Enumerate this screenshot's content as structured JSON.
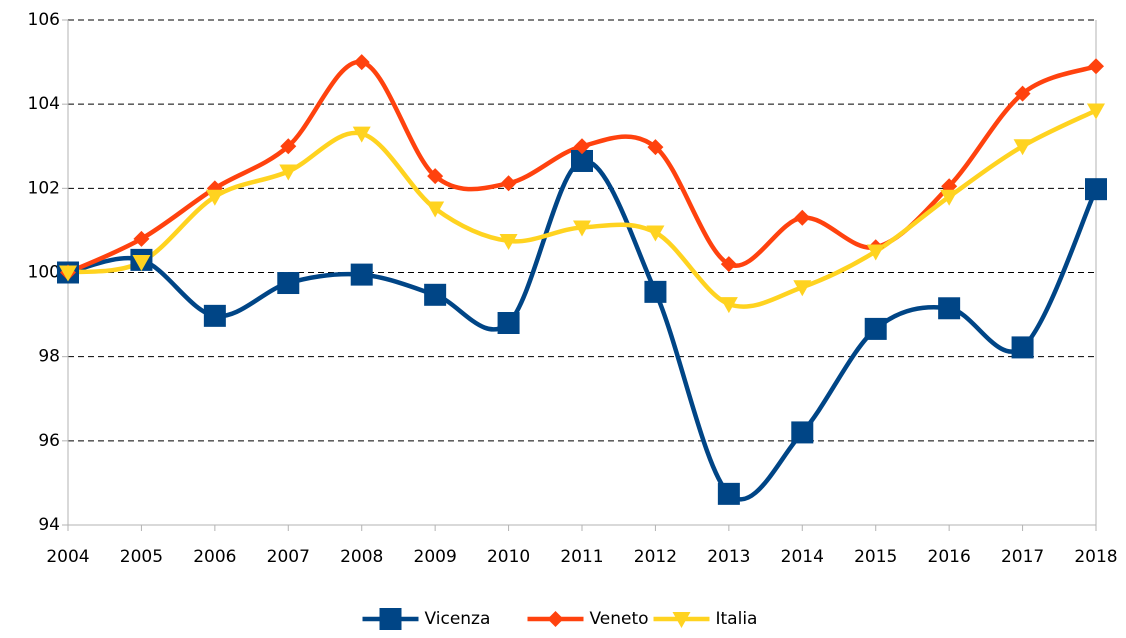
{
  "chart_data": {
    "type": "line",
    "categories": [
      "2004",
      "2005",
      "2006",
      "2007",
      "2008",
      "2009",
      "2010",
      "2011",
      "2012",
      "2013",
      "2014",
      "2015",
      "2016",
      "2017",
      "2018"
    ],
    "series": [
      {
        "name": "Vicenza",
        "color": "#004586",
        "marker": "square",
        "values": [
          100,
          100.3,
          98.97,
          99.75,
          99.95,
          99.47,
          98.8,
          102.65,
          99.54,
          94.74,
          96.2,
          98.66,
          99.15,
          98.22,
          101.98
        ]
      },
      {
        "name": "Veneto",
        "color": "#ff420e",
        "marker": "diamond",
        "values": [
          100,
          100.8,
          102.0,
          103.0,
          105.0,
          102.29,
          102.12,
          103.0,
          102.98,
          100.2,
          101.3,
          100.6,
          102.05,
          104.25,
          104.9
        ]
      },
      {
        "name": "Italia",
        "color": "#ffd320",
        "marker": "triangle-down",
        "values": [
          100,
          100.25,
          101.8,
          102.4,
          103.3,
          101.52,
          100.75,
          101.07,
          100.95,
          99.25,
          99.65,
          100.5,
          101.8,
          103.0,
          103.85
        ]
      }
    ],
    "ylim": [
      94,
      106
    ],
    "yticks": [
      94,
      96,
      98,
      100,
      102,
      104,
      106
    ],
    "grid": true,
    "smooth": true,
    "legend": "bottom"
  }
}
